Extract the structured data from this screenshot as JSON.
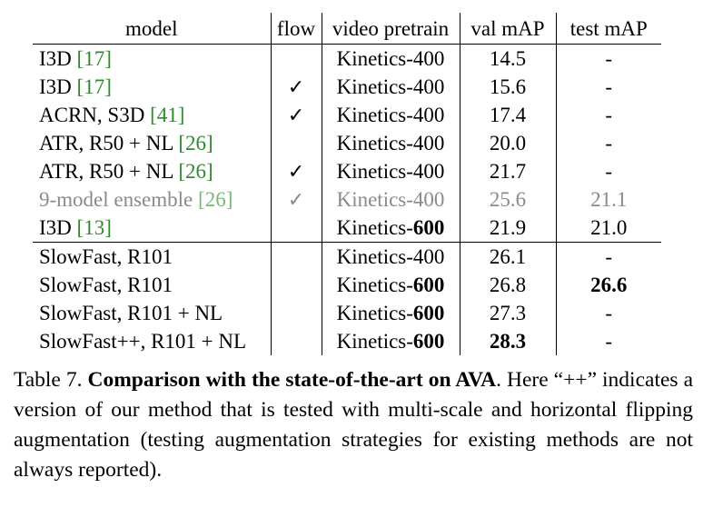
{
  "headers": {
    "model": "model",
    "flow": "flow",
    "pretrain": "video pretrain",
    "val": "val mAP",
    "test": "test mAP"
  },
  "rows": [
    {
      "model": "I3D",
      "cite": "17",
      "flow": "",
      "pretrain_base": "Kinetics-",
      "pretrain_num": "400",
      "pretrain_bold": false,
      "val": "14.5",
      "val_bold": false,
      "test": "-",
      "test_bold": false,
      "gray": false
    },
    {
      "model": "I3D",
      "cite": "17",
      "flow": "✓",
      "pretrain_base": "Kinetics-",
      "pretrain_num": "400",
      "pretrain_bold": false,
      "val": "15.6",
      "val_bold": false,
      "test": "-",
      "test_bold": false,
      "gray": false
    },
    {
      "model": "ACRN, S3D",
      "cite": "41",
      "flow": "✓",
      "pretrain_base": "Kinetics-",
      "pretrain_num": "400",
      "pretrain_bold": false,
      "val": "17.4",
      "val_bold": false,
      "test": "-",
      "test_bold": false,
      "gray": false
    },
    {
      "model": "ATR, R50 + NL",
      "cite": "26",
      "flow": "",
      "pretrain_base": "Kinetics-",
      "pretrain_num": "400",
      "pretrain_bold": false,
      "val": "20.0",
      "val_bold": false,
      "test": "-",
      "test_bold": false,
      "gray": false
    },
    {
      "model": "ATR, R50 + NL",
      "cite": "26",
      "flow": "✓",
      "pretrain_base": "Kinetics-",
      "pretrain_num": "400",
      "pretrain_bold": false,
      "val": "21.7",
      "val_bold": false,
      "test": "-",
      "test_bold": false,
      "gray": false
    },
    {
      "model": "9-model ensemble",
      "cite": "26",
      "flow": "✓",
      "pretrain_base": "Kinetics-",
      "pretrain_num": "400",
      "pretrain_bold": false,
      "val": "25.6",
      "val_bold": false,
      "test": "21.1",
      "test_bold": false,
      "gray": true
    },
    {
      "model": "I3D",
      "cite": "13",
      "flow": "",
      "pretrain_base": "Kinetics-",
      "pretrain_num": "600",
      "pretrain_bold": true,
      "val": "21.9",
      "val_bold": false,
      "test": "21.0",
      "test_bold": false,
      "gray": false
    },
    {
      "model": "SlowFast, R101",
      "cite": "",
      "flow": "",
      "pretrain_base": "Kinetics-",
      "pretrain_num": "400",
      "pretrain_bold": false,
      "val": "26.1",
      "val_bold": false,
      "test": "-",
      "test_bold": false,
      "gray": false
    },
    {
      "model": "SlowFast, R101",
      "cite": "",
      "flow": "",
      "pretrain_base": "Kinetics-",
      "pretrain_num": "600",
      "pretrain_bold": true,
      "val": "26.8",
      "val_bold": false,
      "test": "26.6",
      "test_bold": true,
      "gray": false
    },
    {
      "model": "SlowFast, R101 + NL",
      "cite": "",
      "flow": "",
      "pretrain_base": "Kinetics-",
      "pretrain_num": "600",
      "pretrain_bold": true,
      "val": "27.3",
      "val_bold": false,
      "test": "-",
      "test_bold": false,
      "gray": false
    },
    {
      "model": "SlowFast++, R101 + NL",
      "cite": "",
      "flow": "",
      "pretrain_base": "Kinetics-",
      "pretrain_num": "600",
      "pretrain_bold": true,
      "val": "28.3",
      "val_bold": true,
      "test": "-",
      "test_bold": false,
      "gray": false
    }
  ],
  "caption": {
    "label": "Table 7.",
    "title": "Comparison with the state-of-the-art on AVA",
    "body": ". Here “++” indicates a version of our method that is tested with multi-scale and horizontal flipping augmentation (testing augmentation strategies for existing methods are not always reported)."
  }
}
